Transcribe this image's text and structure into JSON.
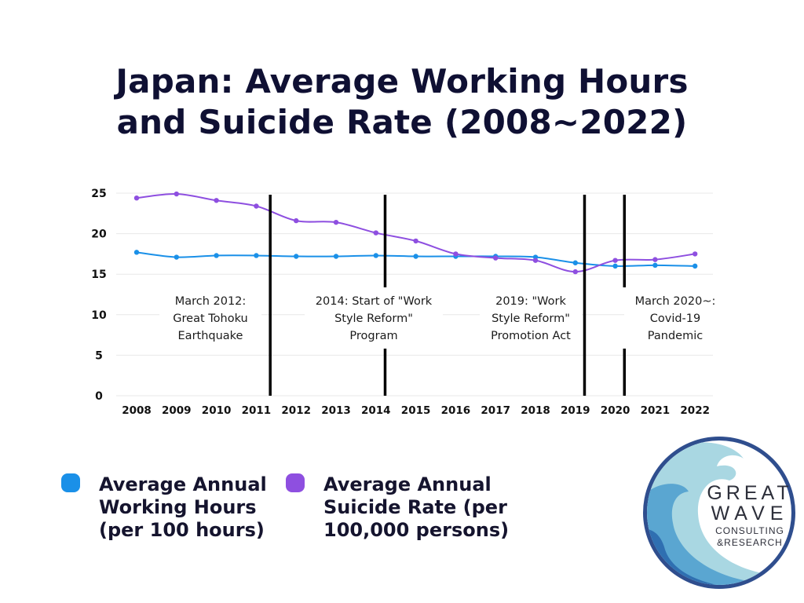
{
  "title": {
    "line1": "Japan: Average Working Hours",
    "line2": "and Suicide Rate (2008~2022)"
  },
  "colors": {
    "title": "#0f1033",
    "working_hours": "#1a90e8",
    "suicide_rate": "#8e4fe0",
    "event_lines": "#000000",
    "grid": "#e8e8e8",
    "logo_ring": "#2f4e8e",
    "logo_wave_dark": "#2f6fb1",
    "logo_wave_light": "#a9d7e2"
  },
  "chart_data": {
    "type": "line",
    "categories": [
      "2008",
      "2009",
      "2010",
      "2011",
      "2012",
      "2013",
      "2014",
      "2015",
      "2016",
      "2017",
      "2018",
      "2019",
      "2020",
      "2021",
      "2022"
    ],
    "series": [
      {
        "name": "Average Annual Working Hours (per 100 hours)",
        "color": "#1a90e8",
        "values": [
          17.7,
          17.1,
          17.3,
          17.3,
          17.2,
          17.2,
          17.3,
          17.2,
          17.2,
          17.2,
          17.1,
          16.4,
          16.0,
          16.1,
          16.0
        ]
      },
      {
        "name": "Average Annual Suicide Rate (per 100,000 persons)",
        "color": "#8e4fe0",
        "values": [
          24.4,
          24.9,
          24.1,
          23.4,
          21.6,
          21.4,
          20.1,
          19.1,
          17.5,
          17.0,
          16.7,
          15.3,
          16.7,
          16.8,
          17.5
        ]
      }
    ],
    "yticks": [
      "0",
      "5",
      "10",
      "15",
      "20",
      "25"
    ],
    "ylim": [
      0,
      25
    ],
    "xlabel": "",
    "ylabel": "",
    "grid": true,
    "legend_position": "bottom-left",
    "annotations": [
      {
        "after_year": 2011,
        "offset": 0.35,
        "label_lines": [
          "March 2012:",
          "Great Tohoku",
          "Earthquake"
        ]
      },
      {
        "after_year": 2014,
        "offset": 0.23,
        "label_lines": [
          "2014: Start of \"Work",
          "Style Reform\"",
          "Program"
        ]
      },
      {
        "after_year": 2019,
        "offset": 0.23,
        "label_lines": [
          "2019: \"Work",
          "Style Reform\"",
          "Promotion Act"
        ]
      },
      {
        "after_year": 2020,
        "offset": 0.23,
        "label_lines": [
          "March 2020~:",
          "Covid-19",
          "Pandemic"
        ]
      }
    ]
  },
  "legend": [
    {
      "label": "Average Annual Working Hours (per 100 hours)",
      "lines": [
        "Average Annual",
        "Working Hours",
        "(per 100 hours)"
      ],
      "color": "#1a90e8"
    },
    {
      "label": "Average Annual Suicide Rate (per 100,000 persons)",
      "lines": [
        "Average Annual",
        "Suicide Rate (per",
        "100,000 persons)"
      ],
      "color": "#8e4fe0"
    }
  ],
  "logo": {
    "line1": "GREAT",
    "line2": "WAVE",
    "line3": "CONSULTING",
    "line4": "&RESEARCH"
  }
}
